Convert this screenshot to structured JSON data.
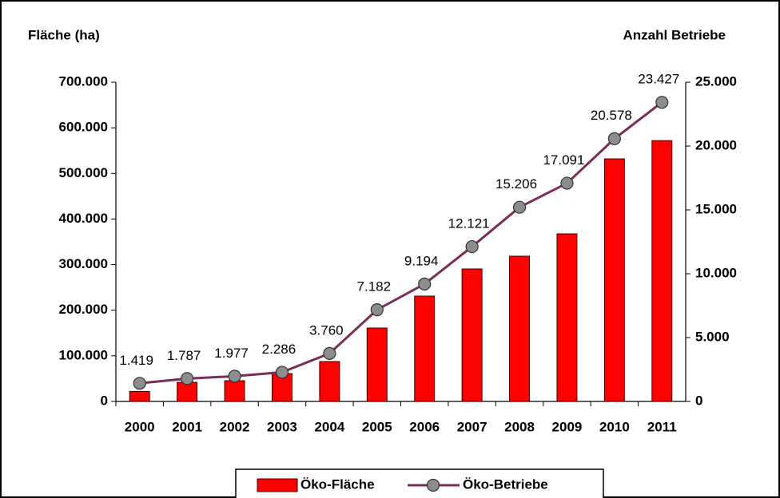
{
  "chart_data": {
    "type": "bar_line",
    "ylabel": "Fläche (ha)",
    "y2label": "Anzahl Betriebe",
    "categories": [
      "2000",
      "2001",
      "2002",
      "2003",
      "2004",
      "2005",
      "2006",
      "2007",
      "2008",
      "2009",
      "2010",
      "2011"
    ],
    "series": [
      {
        "name": "Öko-Fläche",
        "color": "#ff0000",
        "type": "bar",
        "values": [
          22000,
          42000,
          45500,
          61000,
          87500,
          161000,
          231000,
          290500,
          318500,
          367500,
          532000,
          572000
        ]
      },
      {
        "name": "Öko-Betriebe",
        "color": "#7b2d5a",
        "marker_color": "#8c8c8c",
        "type": "line",
        "axis": "y2",
        "values": [
          1419,
          1787,
          1977,
          2286,
          3760,
          7182,
          9194,
          12121,
          15206,
          17091,
          20578,
          23427
        ],
        "value_labels": [
          "1.419",
          "1.787",
          "1.977",
          "2.286",
          "3.760",
          "7.182",
          "9.194",
          "12.121",
          "15.206",
          "17.091",
          "20.578",
          "23.427"
        ]
      }
    ],
    "ylim": [
      0,
      700000
    ],
    "yticks": [
      0,
      {
        "value": 100000,
        "label": "100.000"
      },
      {
        "value": 200000,
        "label": "200.000"
      },
      {
        "value": 300000,
        "label": "300.000"
      },
      {
        "value": 400000,
        "label": "400.000"
      },
      {
        "value": 500000,
        "label": "500.000"
      },
      {
        "value": 600000,
        "label": "600.000"
      },
      {
        "value": 700000,
        "label": "700.000"
      }
    ],
    "y2lim": [
      0,
      25000
    ],
    "y2ticks": [
      0,
      {
        "value": 5000,
        "label": "5.000"
      },
      {
        "value": 10000,
        "label": "10.000"
      },
      {
        "value": 15000,
        "label": "15.000"
      },
      {
        "value": 20000,
        "label": "20.000"
      },
      {
        "value": 25000,
        "label": "25.000"
      }
    ],
    "legend": "bottom"
  }
}
